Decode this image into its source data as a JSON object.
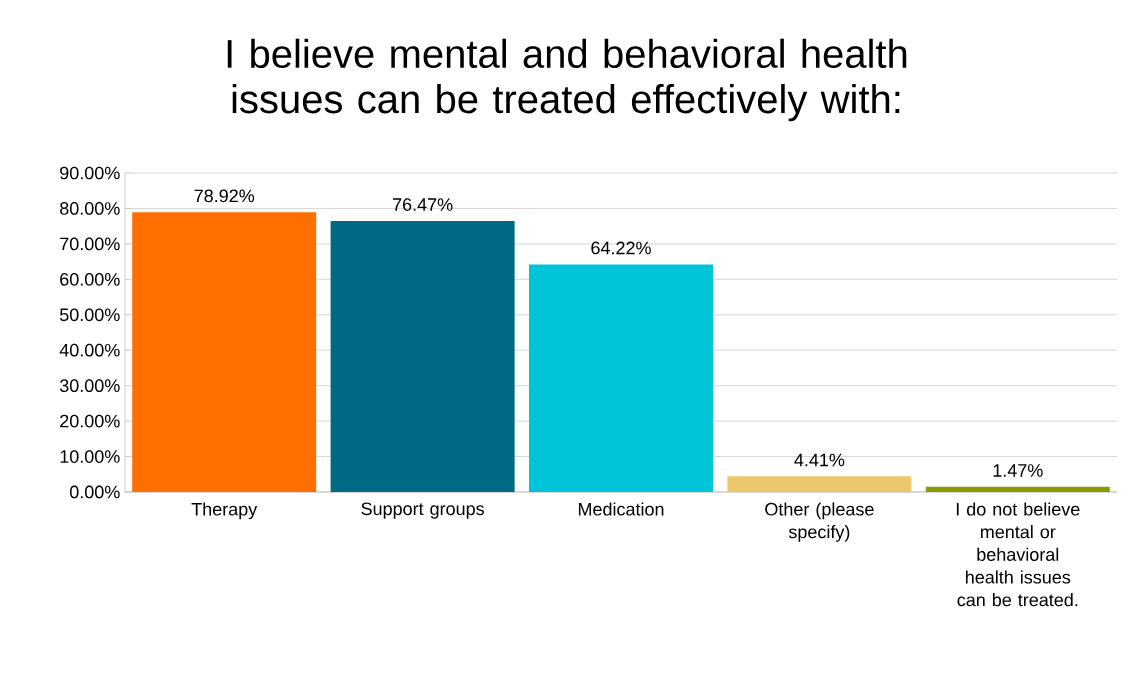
{
  "chart_data": {
    "type": "bar",
    "title": "I believe mental and behavioral health issues can be treated effectively with:",
    "categories": [
      "Therapy",
      "Support groups",
      "Medication",
      "Other (please specify)",
      "I do not believe mental or behavioral health issues can be treated."
    ],
    "values": [
      78.92,
      76.47,
      64.22,
      4.41,
      1.47
    ],
    "colors": [
      "#ff6f00",
      "#006a85",
      "#00c5d8",
      "#ecc86a",
      "#8a9a00"
    ],
    "value_labels": [
      "78.92%",
      "76.47%",
      "64.22%",
      "4.41%",
      "1.47%"
    ],
    "ylim": [
      0,
      90
    ],
    "yticks": [
      {
        "value": 0,
        "label": "0.00%"
      },
      {
        "value": 10,
        "label": "10.00%"
      },
      {
        "value": 20,
        "label": "20.00%"
      },
      {
        "value": 30,
        "label": "30.00%"
      },
      {
        "value": 40,
        "label": "40.00%"
      },
      {
        "value": 50,
        "label": "50.00%"
      },
      {
        "value": 60,
        "label": "60.00%"
      },
      {
        "value": 70,
        "label": "70.00%"
      },
      {
        "value": 80,
        "label": "80.00%"
      },
      {
        "value": 90,
        "label": "90.00%"
      }
    ],
    "grid": "y"
  }
}
